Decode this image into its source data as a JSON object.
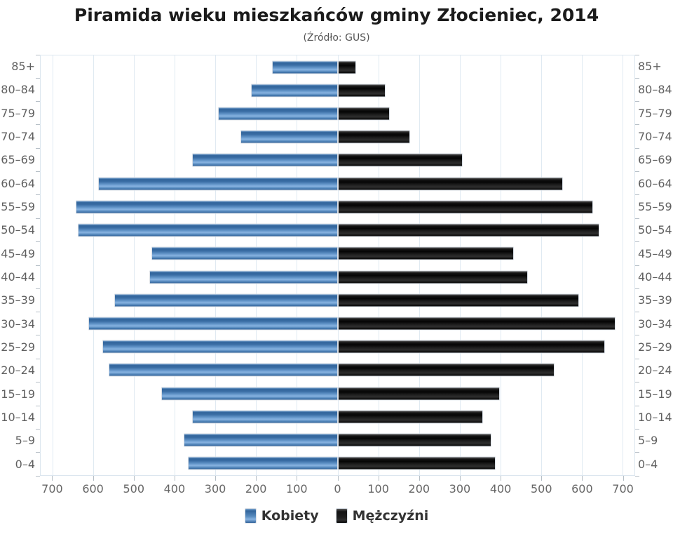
{
  "chart_data": {
    "type": "bar",
    "variant": "population-pyramid",
    "title": "Piramida wieku mieszkańców gminy Złocieniec, 2014",
    "subtitle": "(Źródło: GUS)",
    "categories": [
      "85+",
      "80–84",
      "75–79",
      "70–74",
      "65–69",
      "60–64",
      "55–59",
      "50–54",
      "45–49",
      "40–44",
      "35–39",
      "30–34",
      "25–29",
      "20–24",
      "15–19",
      "10–14",
      "5–9",
      "0–4"
    ],
    "series": [
      {
        "name": "Kobiety",
        "side": "left",
        "color": "#4a80b8",
        "values": [
          158,
          210,
          290,
          235,
          355,
          585,
          640,
          635,
          455,
          460,
          545,
          610,
          575,
          560,
          430,
          355,
          375,
          365
        ]
      },
      {
        "name": "Mężczyźni",
        "side": "right",
        "color": "#1a1a1a",
        "values": [
          42,
          115,
          125,
          175,
          305,
          550,
          625,
          640,
          430,
          465,
          590,
          680,
          655,
          530,
          395,
          355,
          375,
          385
        ]
      }
    ],
    "xlim": [
      -730,
      730
    ],
    "xticks": [
      {
        "value": -700,
        "label": "700"
      },
      {
        "value": -600,
        "label": "600"
      },
      {
        "value": -500,
        "label": "500"
      },
      {
        "value": -400,
        "label": "400"
      },
      {
        "value": -300,
        "label": "300"
      },
      {
        "value": -200,
        "label": "200"
      },
      {
        "value": -100,
        "label": "100"
      },
      {
        "value": 0,
        "label": "0"
      },
      {
        "value": 100,
        "label": "100"
      },
      {
        "value": 200,
        "label": "200"
      },
      {
        "value": 300,
        "label": "300"
      },
      {
        "value": 400,
        "label": "400"
      },
      {
        "value": 500,
        "label": "500"
      },
      {
        "value": 600,
        "label": "600"
      },
      {
        "value": 700,
        "label": "700"
      }
    ],
    "grid": true,
    "legend_position": "bottom",
    "colors": {
      "grid": "#e0eaf2",
      "axis_text": "#606060",
      "title_text": "#1b1b1b"
    }
  }
}
